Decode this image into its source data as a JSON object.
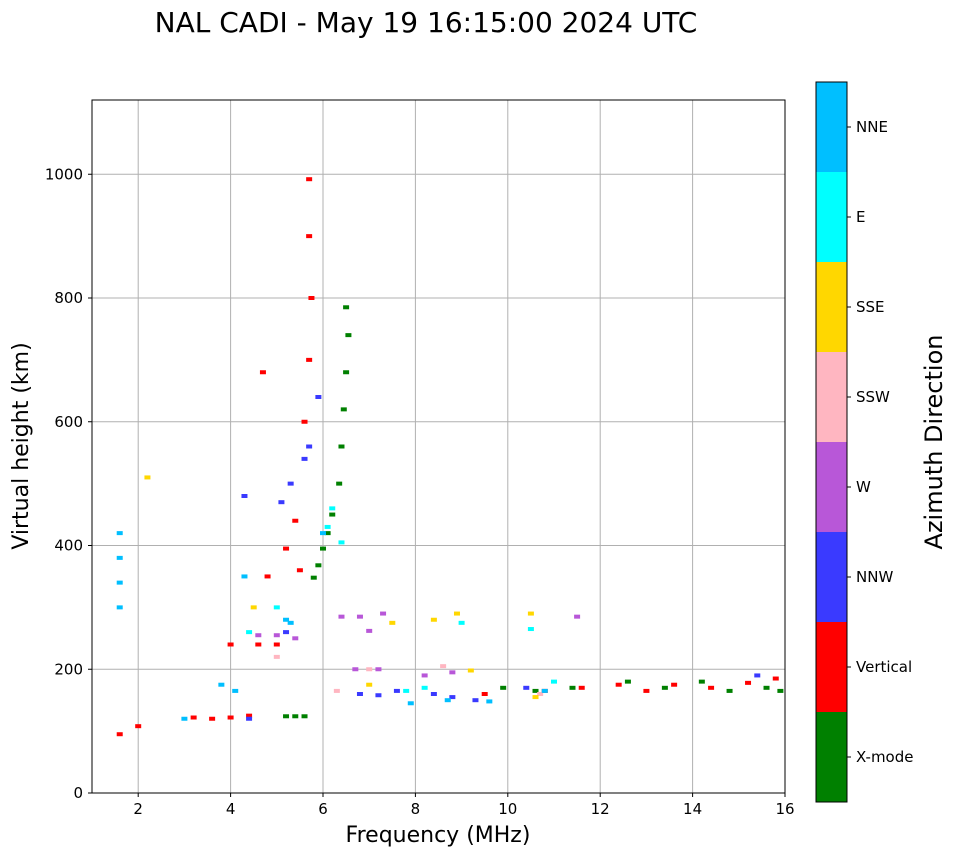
{
  "chart_data": {
    "type": "scatter",
    "title": "NAL CADI - May 19 16:15:00 2024 UTC",
    "xlabel": "Frequency (MHz)",
    "ylabel": "Virtual height (km)",
    "xlim": [
      1,
      16
    ],
    "ylim": [
      0,
      1120
    ],
    "xticks": [
      2,
      4,
      6,
      8,
      10,
      12,
      14,
      16
    ],
    "yticks": [
      0,
      200,
      400,
      600,
      800,
      1000
    ],
    "grid": true,
    "colorbar": {
      "label": "Azimuth Direction",
      "categories": [
        {
          "name": "X-mode",
          "color": "#008000"
        },
        {
          "name": "Vertical",
          "color": "#ff0000"
        },
        {
          "name": "NNW",
          "color": "#3a3aff"
        },
        {
          "name": "W",
          "color": "#b857d8"
        },
        {
          "name": "SSW",
          "color": "#ffb6c1"
        },
        {
          "name": "SSE",
          "color": "#ffd700"
        },
        {
          "name": "E",
          "color": "#00ffff"
        },
        {
          "name": "NNE",
          "color": "#00bfff"
        }
      ]
    },
    "series": [
      {
        "name": "X-mode",
        "points": [
          [
            5.2,
            124
          ],
          [
            5.4,
            124
          ],
          [
            5.6,
            124
          ],
          [
            5.8,
            348
          ],
          [
            5.9,
            368
          ],
          [
            6.0,
            395
          ],
          [
            6.1,
            420
          ],
          [
            6.2,
            450
          ],
          [
            6.35,
            500
          ],
          [
            6.4,
            560
          ],
          [
            6.45,
            620
          ],
          [
            6.5,
            680
          ],
          [
            6.55,
            740
          ],
          [
            6.5,
            785
          ],
          [
            9.9,
            170
          ],
          [
            10.6,
            165
          ],
          [
            11.4,
            170
          ],
          [
            12.6,
            180
          ],
          [
            13.4,
            170
          ],
          [
            14.2,
            180
          ],
          [
            14.8,
            165
          ],
          [
            15.6,
            170
          ],
          [
            15.9,
            165
          ]
        ]
      },
      {
        "name": "Vertical",
        "points": [
          [
            1.6,
            95
          ],
          [
            2.0,
            108
          ],
          [
            3.2,
            122
          ],
          [
            3.6,
            120
          ],
          [
            4.0,
            122
          ],
          [
            4.4,
            125
          ],
          [
            4.0,
            240
          ],
          [
            4.6,
            240
          ],
          [
            5.0,
            240
          ],
          [
            4.8,
            350
          ],
          [
            5.2,
            395
          ],
          [
            5.4,
            440
          ],
          [
            5.6,
            600
          ],
          [
            5.7,
            700
          ],
          [
            5.75,
            800
          ],
          [
            5.7,
            992
          ],
          [
            5.7,
            900
          ],
          [
            4.7,
            680
          ],
          [
            5.5,
            360
          ],
          [
            9.5,
            160
          ],
          [
            10.8,
            165
          ],
          [
            11.6,
            170
          ],
          [
            12.4,
            175
          ],
          [
            13.0,
            165
          ],
          [
            13.6,
            175
          ],
          [
            14.4,
            170
          ],
          [
            15.2,
            178
          ],
          [
            15.8,
            185
          ]
        ]
      },
      {
        "name": "NNW",
        "points": [
          [
            4.3,
            480
          ],
          [
            5.1,
            470
          ],
          [
            5.3,
            500
          ],
          [
            5.6,
            540
          ],
          [
            5.7,
            560
          ],
          [
            5.9,
            640
          ],
          [
            6.8,
            160
          ],
          [
            7.2,
            158
          ],
          [
            7.6,
            165
          ],
          [
            8.4,
            160
          ],
          [
            8.8,
            155
          ],
          [
            9.3,
            150
          ],
          [
            10.4,
            170
          ],
          [
            5.2,
            260
          ],
          [
            4.4,
            120
          ],
          [
            15.4,
            190
          ]
        ]
      },
      {
        "name": "W",
        "points": [
          [
            4.6,
            255
          ],
          [
            5.0,
            255
          ],
          [
            5.4,
            250
          ],
          [
            6.4,
            285
          ],
          [
            6.8,
            285
          ],
          [
            7.0,
            262
          ],
          [
            7.3,
            290
          ],
          [
            6.7,
            200
          ],
          [
            7.2,
            200
          ],
          [
            8.2,
            190
          ],
          [
            8.8,
            195
          ],
          [
            11.5,
            285
          ]
        ]
      },
      {
        "name": "SSW",
        "points": [
          [
            5.0,
            220
          ],
          [
            6.3,
            165
          ],
          [
            7.0,
            200
          ],
          [
            8.6,
            205
          ],
          [
            10.7,
            160
          ]
        ]
      },
      {
        "name": "SSE",
        "points": [
          [
            2.2,
            510
          ],
          [
            4.5,
            300
          ],
          [
            7.5,
            275
          ],
          [
            8.4,
            280
          ],
          [
            8.9,
            290
          ],
          [
            10.5,
            290
          ],
          [
            9.2,
            198
          ],
          [
            7.0,
            175
          ],
          [
            10.6,
            155
          ]
        ]
      },
      {
        "name": "E",
        "points": [
          [
            4.4,
            260
          ],
          [
            5.0,
            300
          ],
          [
            6.1,
            430
          ],
          [
            6.2,
            460
          ],
          [
            6.4,
            405
          ],
          [
            7.8,
            165
          ],
          [
            8.2,
            170
          ],
          [
            9.0,
            275
          ],
          [
            10.5,
            265
          ],
          [
            11.0,
            180
          ]
        ]
      },
      {
        "name": "NNE",
        "points": [
          [
            1.6,
            300
          ],
          [
            1.6,
            340
          ],
          [
            1.6,
            380
          ],
          [
            1.6,
            420
          ],
          [
            3.8,
            175
          ],
          [
            4.1,
            165
          ],
          [
            4.3,
            350
          ],
          [
            5.2,
            280
          ],
          [
            5.3,
            275
          ],
          [
            6.0,
            420
          ],
          [
            7.9,
            145
          ],
          [
            8.7,
            150
          ],
          [
            9.6,
            148
          ],
          [
            10.8,
            165
          ],
          [
            3.0,
            120
          ]
        ]
      }
    ]
  }
}
